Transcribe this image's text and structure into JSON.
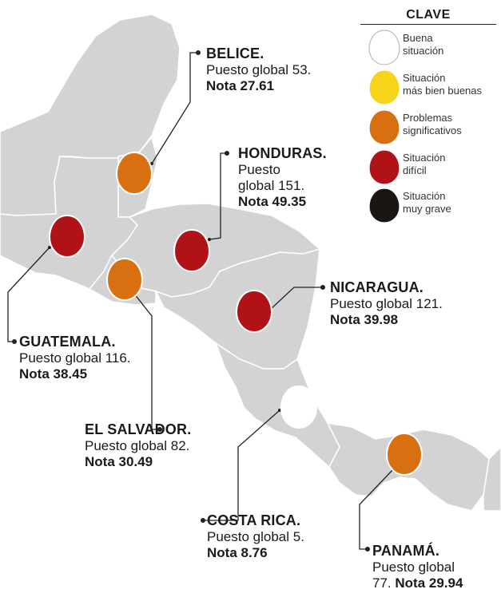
{
  "legend": {
    "title": "CLAVE",
    "items": [
      {
        "line1": "Buena",
        "line2": "situación",
        "color": "#ffffff"
      },
      {
        "line1": "Situación",
        "line2": "más bien buenas",
        "color": "#f7d31a"
      },
      {
        "line1": "Problemas",
        "line2": "significativos",
        "color": "#d86f10"
      },
      {
        "line1": "Situación",
        "line2": "difícil",
        "color": "#b01218"
      },
      {
        "line1": "Situación",
        "line2": "muy grave",
        "color": "#1a1614"
      }
    ]
  },
  "countries": {
    "belice": {
      "name": "BELICE.",
      "rank": "Puesto global 53.",
      "score": "Nota 27.61",
      "color": "#d86f10"
    },
    "honduras": {
      "name": "HONDURAS.",
      "rank1": "Puesto",
      "rank2": "global 151.",
      "score": "Nota 49.35",
      "color": "#b01218"
    },
    "nicaragua": {
      "name": "NICARAGUA.",
      "rank": "Puesto global 121.",
      "score": "Nota 39.98",
      "color": "#b01218"
    },
    "guatemala": {
      "name": "GUATEMALA.",
      "rank": "Puesto global 116.",
      "score": "Nota 38.45",
      "color": "#b01218"
    },
    "el_salvador": {
      "name": "EL SALVADOR.",
      "rank": "Puesto global 82.",
      "score": "Nota 30.49",
      "color": "#d86f10"
    },
    "costa_rica": {
      "name": "COSTA RICA.",
      "rank": "Puesto global 5.",
      "score": "Nota 8.76",
      "color": "#ffffff"
    },
    "panama": {
      "name": "PANAMÁ.",
      "rank1": "Puesto global",
      "rank2": "77.",
      "score": "Nota 29.94",
      "color": "#d86f10"
    }
  }
}
